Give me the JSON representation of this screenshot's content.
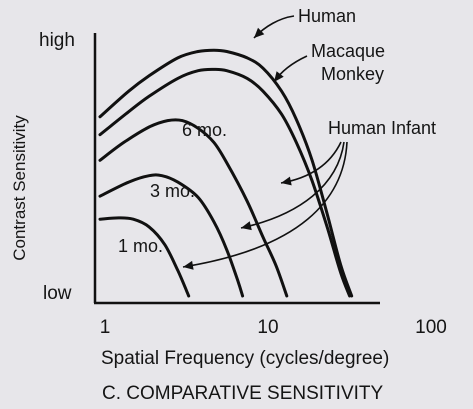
{
  "chart_data": {
    "type": "line",
    "x_scale": "log",
    "xlim": [
      1,
      100
    ],
    "x_ticks": [
      {
        "value": 1,
        "label": "1"
      },
      {
        "value": 10,
        "label": "10"
      },
      {
        "value": 100,
        "label": "100"
      }
    ],
    "ylabel": "Contrast Sensitivity",
    "xlabel": "Spatial Frequency (cycles/degree)",
    "y_tick_labels": {
      "top": "high",
      "bottom": "low"
    },
    "ylim": [
      0,
      1
    ],
    "caption": "C. COMPARATIVE SENSITIVITY",
    "grid": false,
    "series": [
      {
        "name": "Human",
        "points": [
          [
            1,
            0.7
          ],
          [
            1.5,
            0.8
          ],
          [
            2,
            0.86
          ],
          [
            3,
            0.93
          ],
          [
            4,
            0.955
          ],
          [
            5,
            0.96
          ],
          [
            6,
            0.955
          ],
          [
            8,
            0.93
          ],
          [
            10,
            0.89
          ],
          [
            13,
            0.8
          ],
          [
            16,
            0.69
          ],
          [
            20,
            0.53
          ],
          [
            25,
            0.31
          ],
          [
            30,
            0.12
          ],
          [
            35,
            0.0
          ]
        ]
      },
      {
        "name": "Macaque Monkey",
        "points": [
          [
            1,
            0.63
          ],
          [
            1.5,
            0.72
          ],
          [
            2,
            0.78
          ],
          [
            3,
            0.85
          ],
          [
            4,
            0.88
          ],
          [
            5,
            0.885
          ],
          [
            6,
            0.88
          ],
          [
            8,
            0.85
          ],
          [
            10,
            0.8
          ],
          [
            13,
            0.71
          ],
          [
            16,
            0.6
          ],
          [
            20,
            0.45
          ],
          [
            25,
            0.26
          ],
          [
            30,
            0.09
          ],
          [
            34,
            0.0
          ]
        ]
      },
      {
        "name": "6 mo.",
        "points": [
          [
            1,
            0.53
          ],
          [
            1.4,
            0.6
          ],
          [
            2,
            0.66
          ],
          [
            2.6,
            0.685
          ],
          [
            3.2,
            0.685
          ],
          [
            4,
            0.655
          ],
          [
            5,
            0.6
          ],
          [
            6,
            0.52
          ],
          [
            8,
            0.37
          ],
          [
            10,
            0.23
          ],
          [
            12,
            0.12
          ],
          [
            14,
            0.0
          ]
        ]
      },
      {
        "name": "3 mo.",
        "points": [
          [
            1,
            0.39
          ],
          [
            1.5,
            0.445
          ],
          [
            2,
            0.47
          ],
          [
            2.4,
            0.47
          ],
          [
            3,
            0.445
          ],
          [
            4,
            0.385
          ],
          [
            5,
            0.29
          ],
          [
            6,
            0.18
          ],
          [
            7,
            0.06
          ],
          [
            7.5,
            0.0
          ]
        ]
      },
      {
        "name": "1 mo.",
        "points": [
          [
            1,
            0.3
          ],
          [
            1.3,
            0.305
          ],
          [
            1.6,
            0.3
          ],
          [
            2,
            0.27
          ],
          [
            2.5,
            0.2
          ],
          [
            3,
            0.1
          ],
          [
            3.4,
            0.02
          ],
          [
            3.5,
            0.0
          ]
        ]
      }
    ],
    "annotations": [
      {
        "text": "Human",
        "target": "Human"
      },
      {
        "text": "Macaque",
        "text2": "Monkey",
        "target": "Macaque Monkey"
      },
      {
        "text": "Human Infant",
        "targets": [
          "6 mo.",
          "3 mo.",
          "1 mo."
        ]
      }
    ]
  }
}
